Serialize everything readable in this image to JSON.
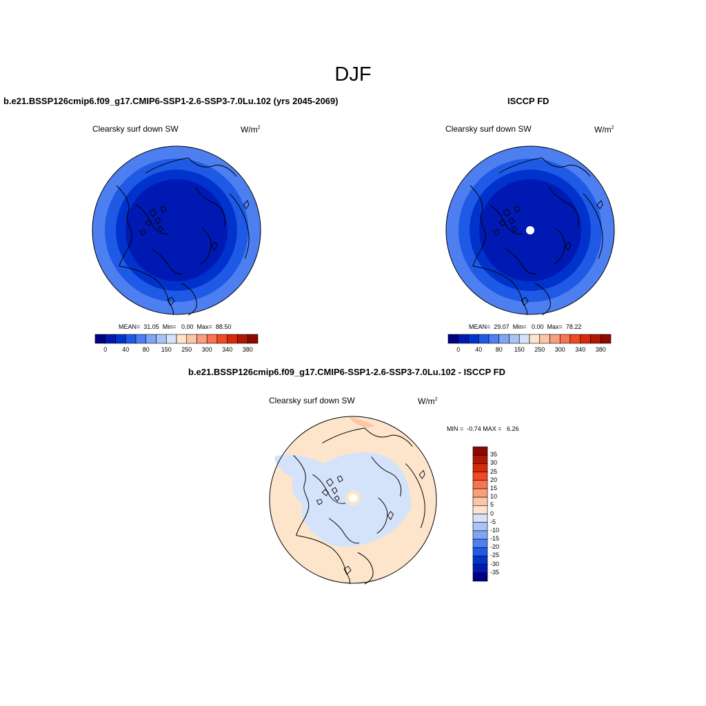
{
  "figure": {
    "season": "DJF"
  },
  "panels": {
    "left": {
      "title": "b.e21.BSSP126cmip6.f09_g17.CMIP6-SSP1-2.6-SSP3-7.0Lu.102 (yrs 2045-2069)",
      "variable": "Clearsky surf down SW",
      "units": "W/m",
      "units_exp": "2",
      "stats": "MEAN=  31.05  Min=   0.00  Max=  88.50",
      "mean": 31.05,
      "min": 0.0,
      "max": 88.5
    },
    "right": {
      "title": "ISCCP FD",
      "variable": "Clearsky surf down SW",
      "units": "W/m",
      "units_exp": "2",
      "stats": "MEAN=  29.07  Min=   0.00  Max=  78.22",
      "mean": 29.07,
      "min": 0.0,
      "max": 78.22
    },
    "diff": {
      "title": "b.e21.BSSP126cmip6.f09_g17.CMIP6-SSP1-2.6-SSP3-7.0Lu.102 - ISCCP FD",
      "variable": "Clearsky surf down SW",
      "units": "W/m",
      "units_exp": "2",
      "stats": "MIN =  -0.74 MAX =   6.26",
      "min": -0.74,
      "max": 6.26
    }
  },
  "colorbars": {
    "absolute": {
      "tick_labels": [
        "0",
        "40",
        "80",
        "150",
        "250",
        "300",
        "340",
        "380"
      ],
      "colors": [
        "#000080",
        "#0019b3",
        "#0033cc",
        "#1f5ae6",
        "#4d7ff0",
        "#7ea6f5",
        "#a8c4f7",
        "#d4e3fa",
        "#fde5cc",
        "#fcc5a5",
        "#fb9e7c",
        "#f87350",
        "#f04a25",
        "#d62a0b",
        "#b01805",
        "#8b0a00"
      ]
    },
    "difference": {
      "tick_labels": [
        "35",
        "30",
        "25",
        "20",
        "15",
        "10",
        "5",
        "0",
        "-5",
        "-10",
        "-15",
        "-20",
        "-25",
        "-30",
        "-35"
      ],
      "colors": [
        "#8b0a00",
        "#b01805",
        "#d62a0b",
        "#f04a25",
        "#f87350",
        "#fb9e7c",
        "#fcc5a5",
        "#fde5cc",
        "#d4e3fa",
        "#a8c4f7",
        "#7ea6f5",
        "#4d7ff0",
        "#1f5ae6",
        "#0033cc",
        "#0019b3",
        "#000080"
      ]
    }
  },
  "map_colors": {
    "ring_outer": "#4d7ff0",
    "ring_mid": "#1f5ae6",
    "ring_inner": "#0033cc",
    "core": "#0019b3",
    "diff_positive": "#fde5cc",
    "diff_negative": "#d4e3fa",
    "missing": "#ffffff"
  }
}
